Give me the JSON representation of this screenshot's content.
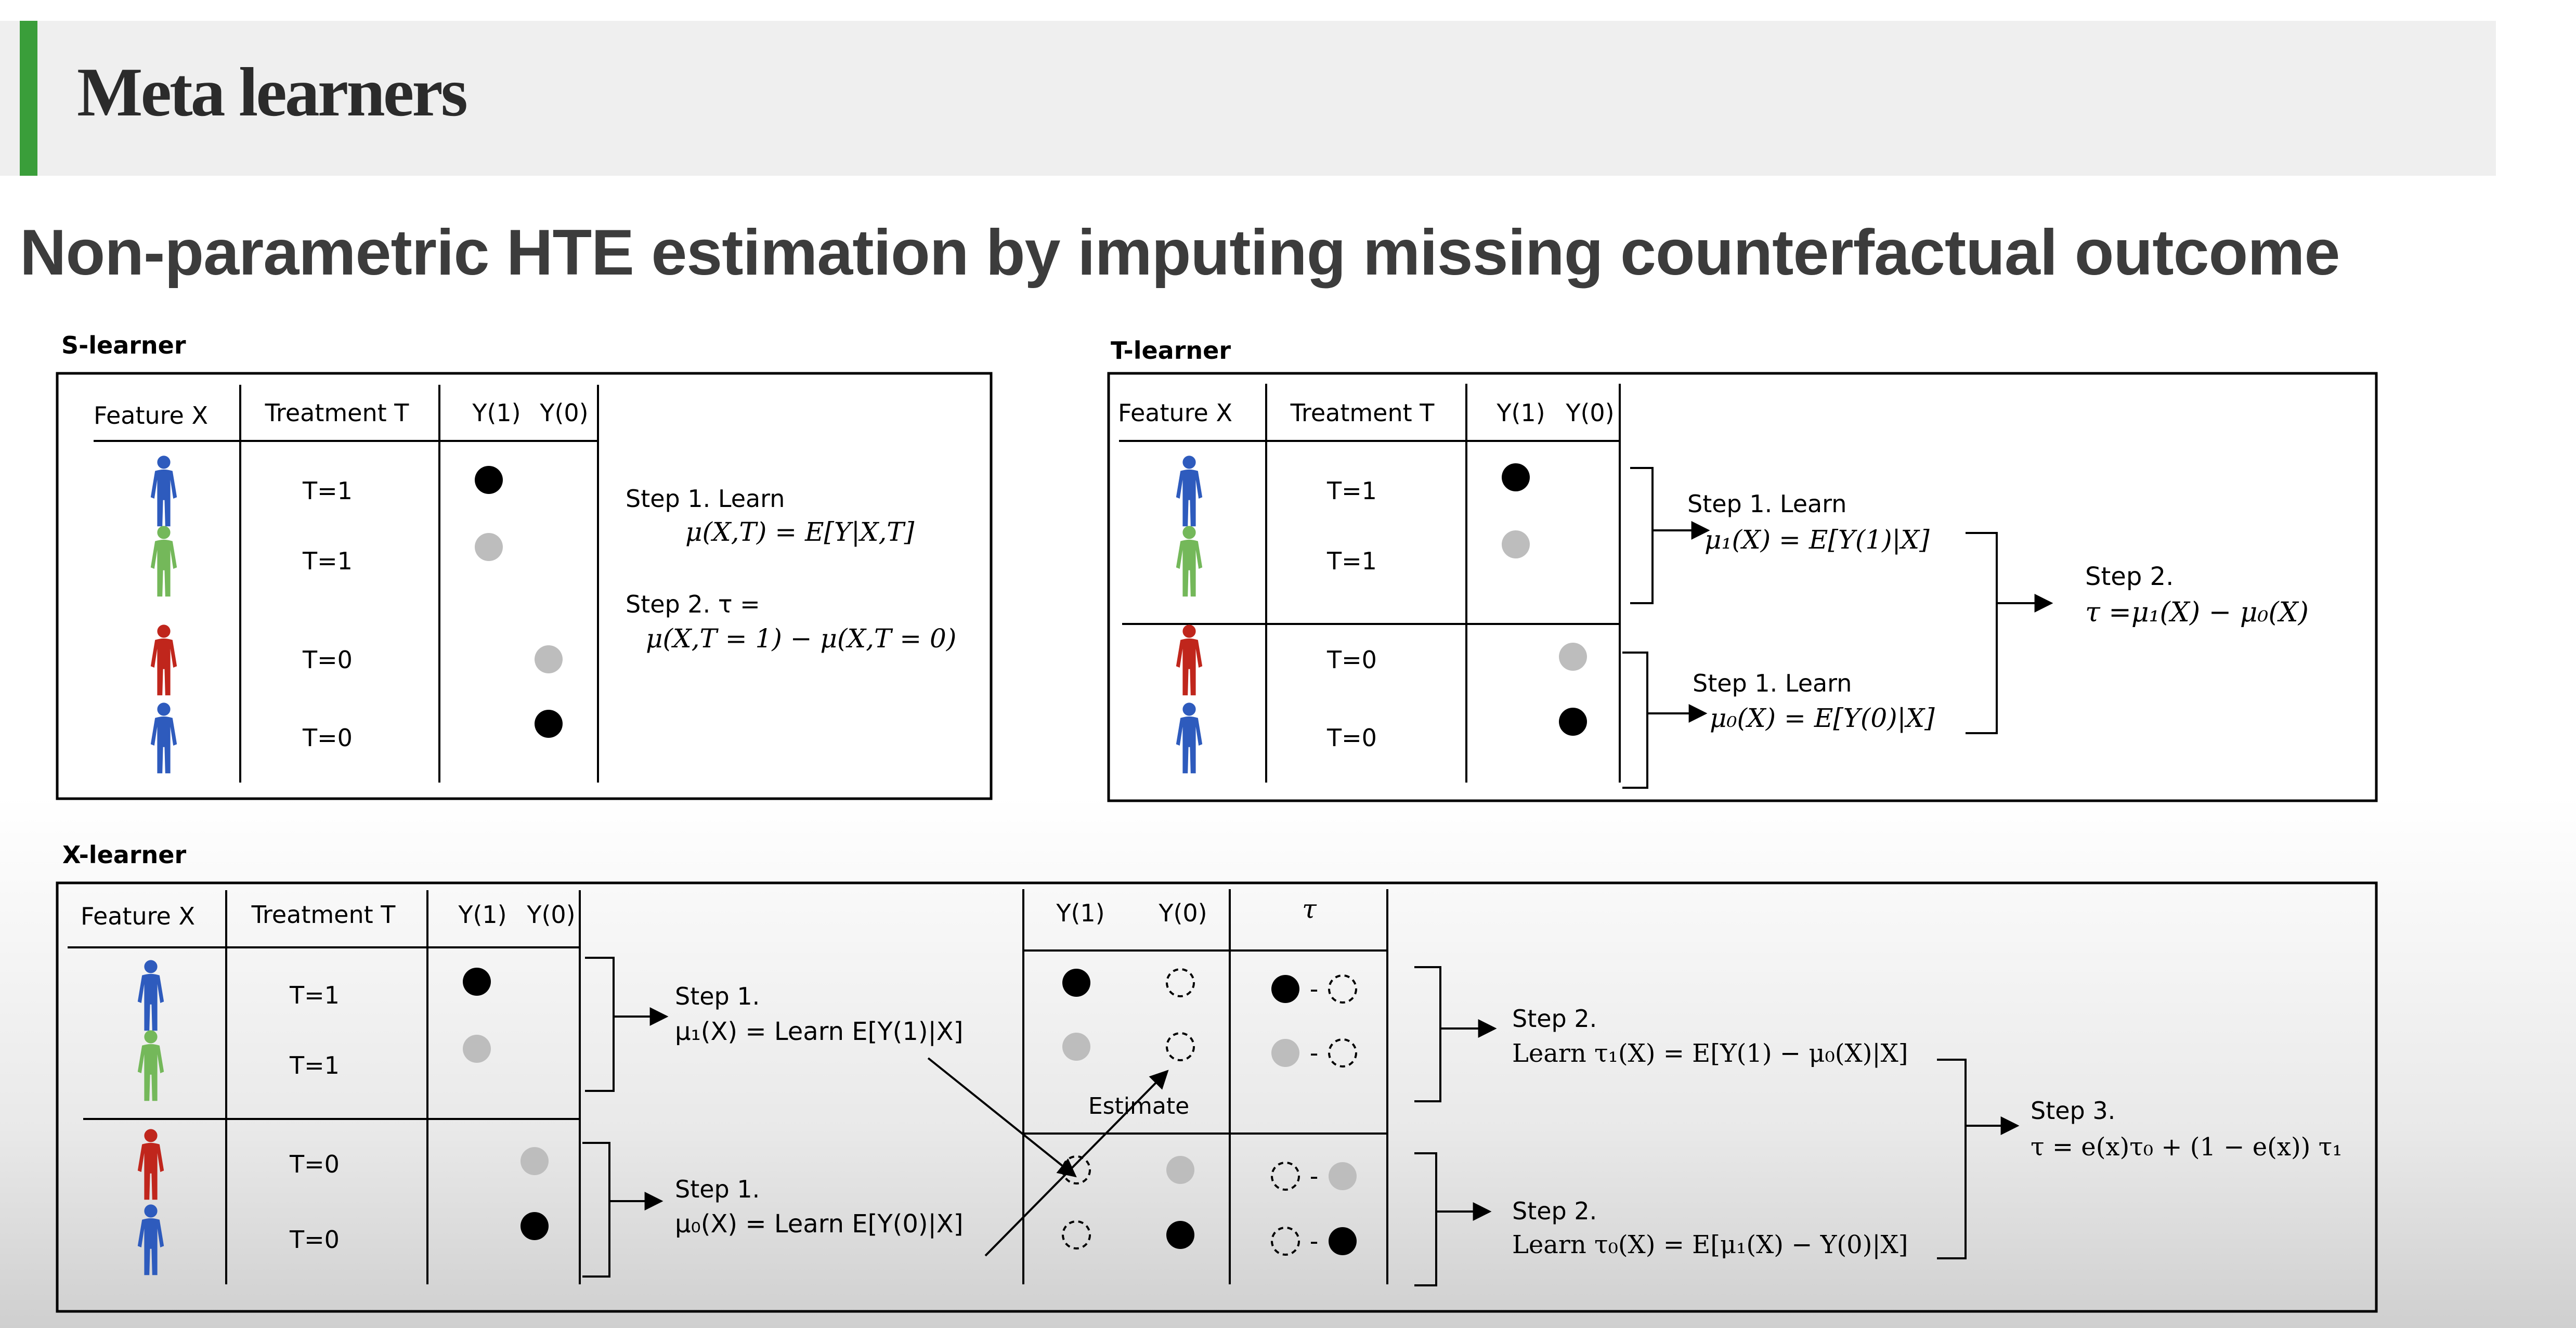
{
  "slide": {
    "title": "Meta learners",
    "subtitle": "Non-parametric HTE estimation by imputing missing counterfactual outcome"
  },
  "colors": {
    "accent": "#3a9e3a",
    "blue_person": "#2e5bbd",
    "green_person": "#74b85a",
    "red_person": "#c0261c",
    "observed_dot": "#000000",
    "gray_dot": "#bdbdbd"
  },
  "s_learner": {
    "label": "S-learner",
    "headers": [
      "Feature X",
      "Treatment T",
      "Y(1)",
      "Y(0)"
    ],
    "rows": [
      {
        "person": "blue",
        "t": "T=1",
        "y1": "black",
        "y0": ""
      },
      {
        "person": "green",
        "t": "T=1",
        "y1": "gray",
        "y0": ""
      },
      {
        "person": "red",
        "t": "T=0",
        "y1": "",
        "y0": "gray"
      },
      {
        "person": "blue",
        "t": "T=0",
        "y1": "",
        "y0": "black"
      }
    ],
    "step1_title": "Step 1. Learn",
    "step1_formula": "μ(X,T) = E[Y|X,T]",
    "step2_title": "Step 2. τ =",
    "step2_formula": "μ(X,T = 1) − μ(X,T = 0)"
  },
  "t_learner": {
    "label": "T-learner",
    "headers": [
      "Feature X",
      "Treatment T",
      "Y(1)",
      "Y(0)"
    ],
    "rows": [
      {
        "person": "blue",
        "t": "T=1",
        "y1": "black",
        "y0": ""
      },
      {
        "person": "green",
        "t": "T=1",
        "y1": "gray",
        "y0": ""
      },
      {
        "person": "red",
        "t": "T=0",
        "y1": "",
        "y0": "gray"
      },
      {
        "person": "blue",
        "t": "T=0",
        "y1": "",
        "y0": "black"
      }
    ],
    "step1a_title": "Step 1. Learn",
    "step1a_formula": "μ₁(X) = E[Y(1)|X]",
    "step1b_title": "Step 1. Learn",
    "step1b_formula": "μ₀(X) = E[Y(0)|X]",
    "step2_title": "Step 2.",
    "step2_formula": "τ =μ₁(X) − μ₀(X)"
  },
  "x_learner": {
    "label": "X-learner",
    "headers": [
      "Feature X",
      "Treatment T",
      "Y(1)",
      "Y(0)"
    ],
    "rows": [
      {
        "person": "blue",
        "t": "T=1",
        "y1": "black",
        "y0": ""
      },
      {
        "person": "green",
        "t": "T=1",
        "y1": "gray",
        "y0": ""
      },
      {
        "person": "red",
        "t": "T=0",
        "y1": "",
        "y0": "gray"
      },
      {
        "person": "blue",
        "t": "T=0",
        "y1": "",
        "y0": "black"
      }
    ],
    "step1a_title": "Step 1.",
    "step1a_formula": "μ₁(X) = Learn E[Y(1)|X]",
    "step1b_title": "Step 1.",
    "step1b_formula": "μ₀(X) = Learn E[Y(0)|X]",
    "imputed_headers": [
      "Y(1)",
      "Y(0)",
      "τ"
    ],
    "estimate_label": "Estimate",
    "tau_dash": "-",
    "step2a_title": "Step 2.",
    "step2a_formula": "Learn τ₁(X) = E[Y(1) − μ₀(X)|X]",
    "step2b_title": "Step 2.",
    "step2b_formula": "Learn τ₀(X) = E[μ₁(X) − Y(0)|X]",
    "step3_title": "Step 3.",
    "step3_formula": "τ = e(x)τ₀ + (1 − e(x)) τ₁"
  }
}
